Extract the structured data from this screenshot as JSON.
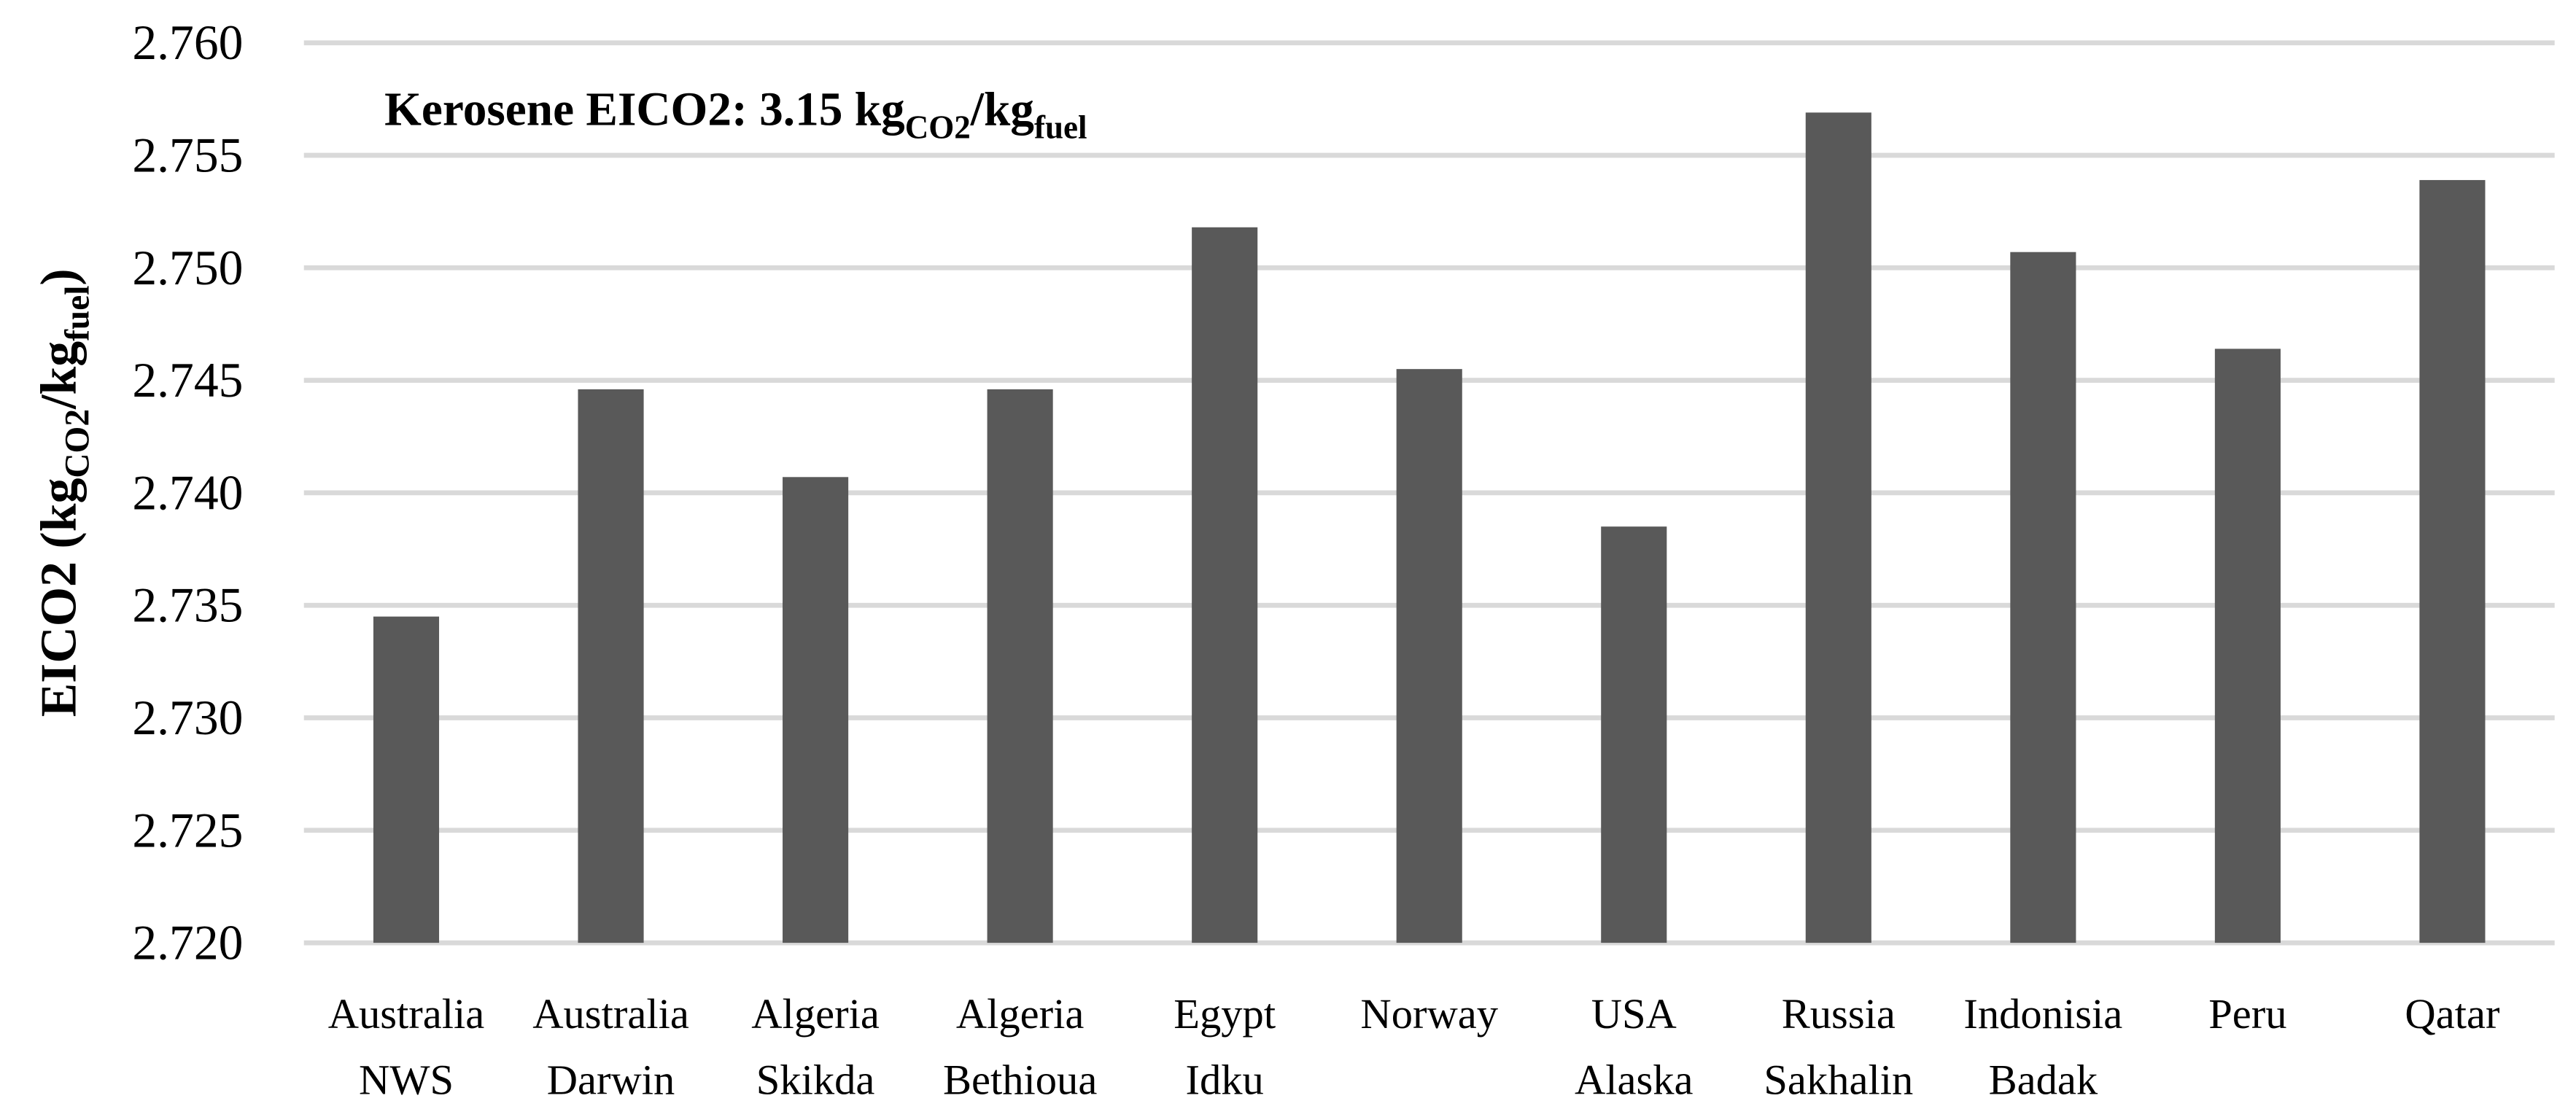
{
  "chart_data": {
    "type": "bar",
    "annotation": {
      "text": "Kerosene EICO2: 3.15 kg",
      "sub1": "CO2",
      "mid": "/kg",
      "sub2": "fuel"
    },
    "y_label": {
      "text": "EICO2 (kg",
      "sub1": "CO2",
      "mid": "/kg",
      "sub2": "fuel",
      "end": ")"
    },
    "categories": [
      [
        "Australia",
        "NWS"
      ],
      [
        "Australia",
        "Darwin"
      ],
      [
        "Algeria",
        "Skikda"
      ],
      [
        "Algeria",
        "Bethioua"
      ],
      [
        "Egypt",
        "Idku"
      ],
      [
        "Norway"
      ],
      [
        "USA",
        "Alaska"
      ],
      [
        "Russia",
        "Sakhalin"
      ],
      [
        "Indonisia",
        "Badak"
      ],
      [
        "Peru"
      ],
      [
        "Qatar"
      ]
    ],
    "values": [
      2.7345,
      2.7446,
      2.7407,
      2.7446,
      2.7518,
      2.7455,
      2.7385,
      2.7569,
      2.7507,
      2.7464,
      2.7539
    ],
    "color": "#595959",
    "ylim": [
      2.72,
      2.76
    ],
    "yticks": [
      {
        "value": 2.72,
        "label": "2.720"
      },
      2.725,
      {
        "value": 2.73,
        "label": "2.730"
      },
      2.735,
      {
        "value": 2.74,
        "label": "2.740"
      },
      2.745,
      {
        "value": 2.75,
        "label": "2.750"
      },
      2.755,
      {
        "value": 2.76,
        "label": "2.760"
      }
    ],
    "grid": true
  }
}
